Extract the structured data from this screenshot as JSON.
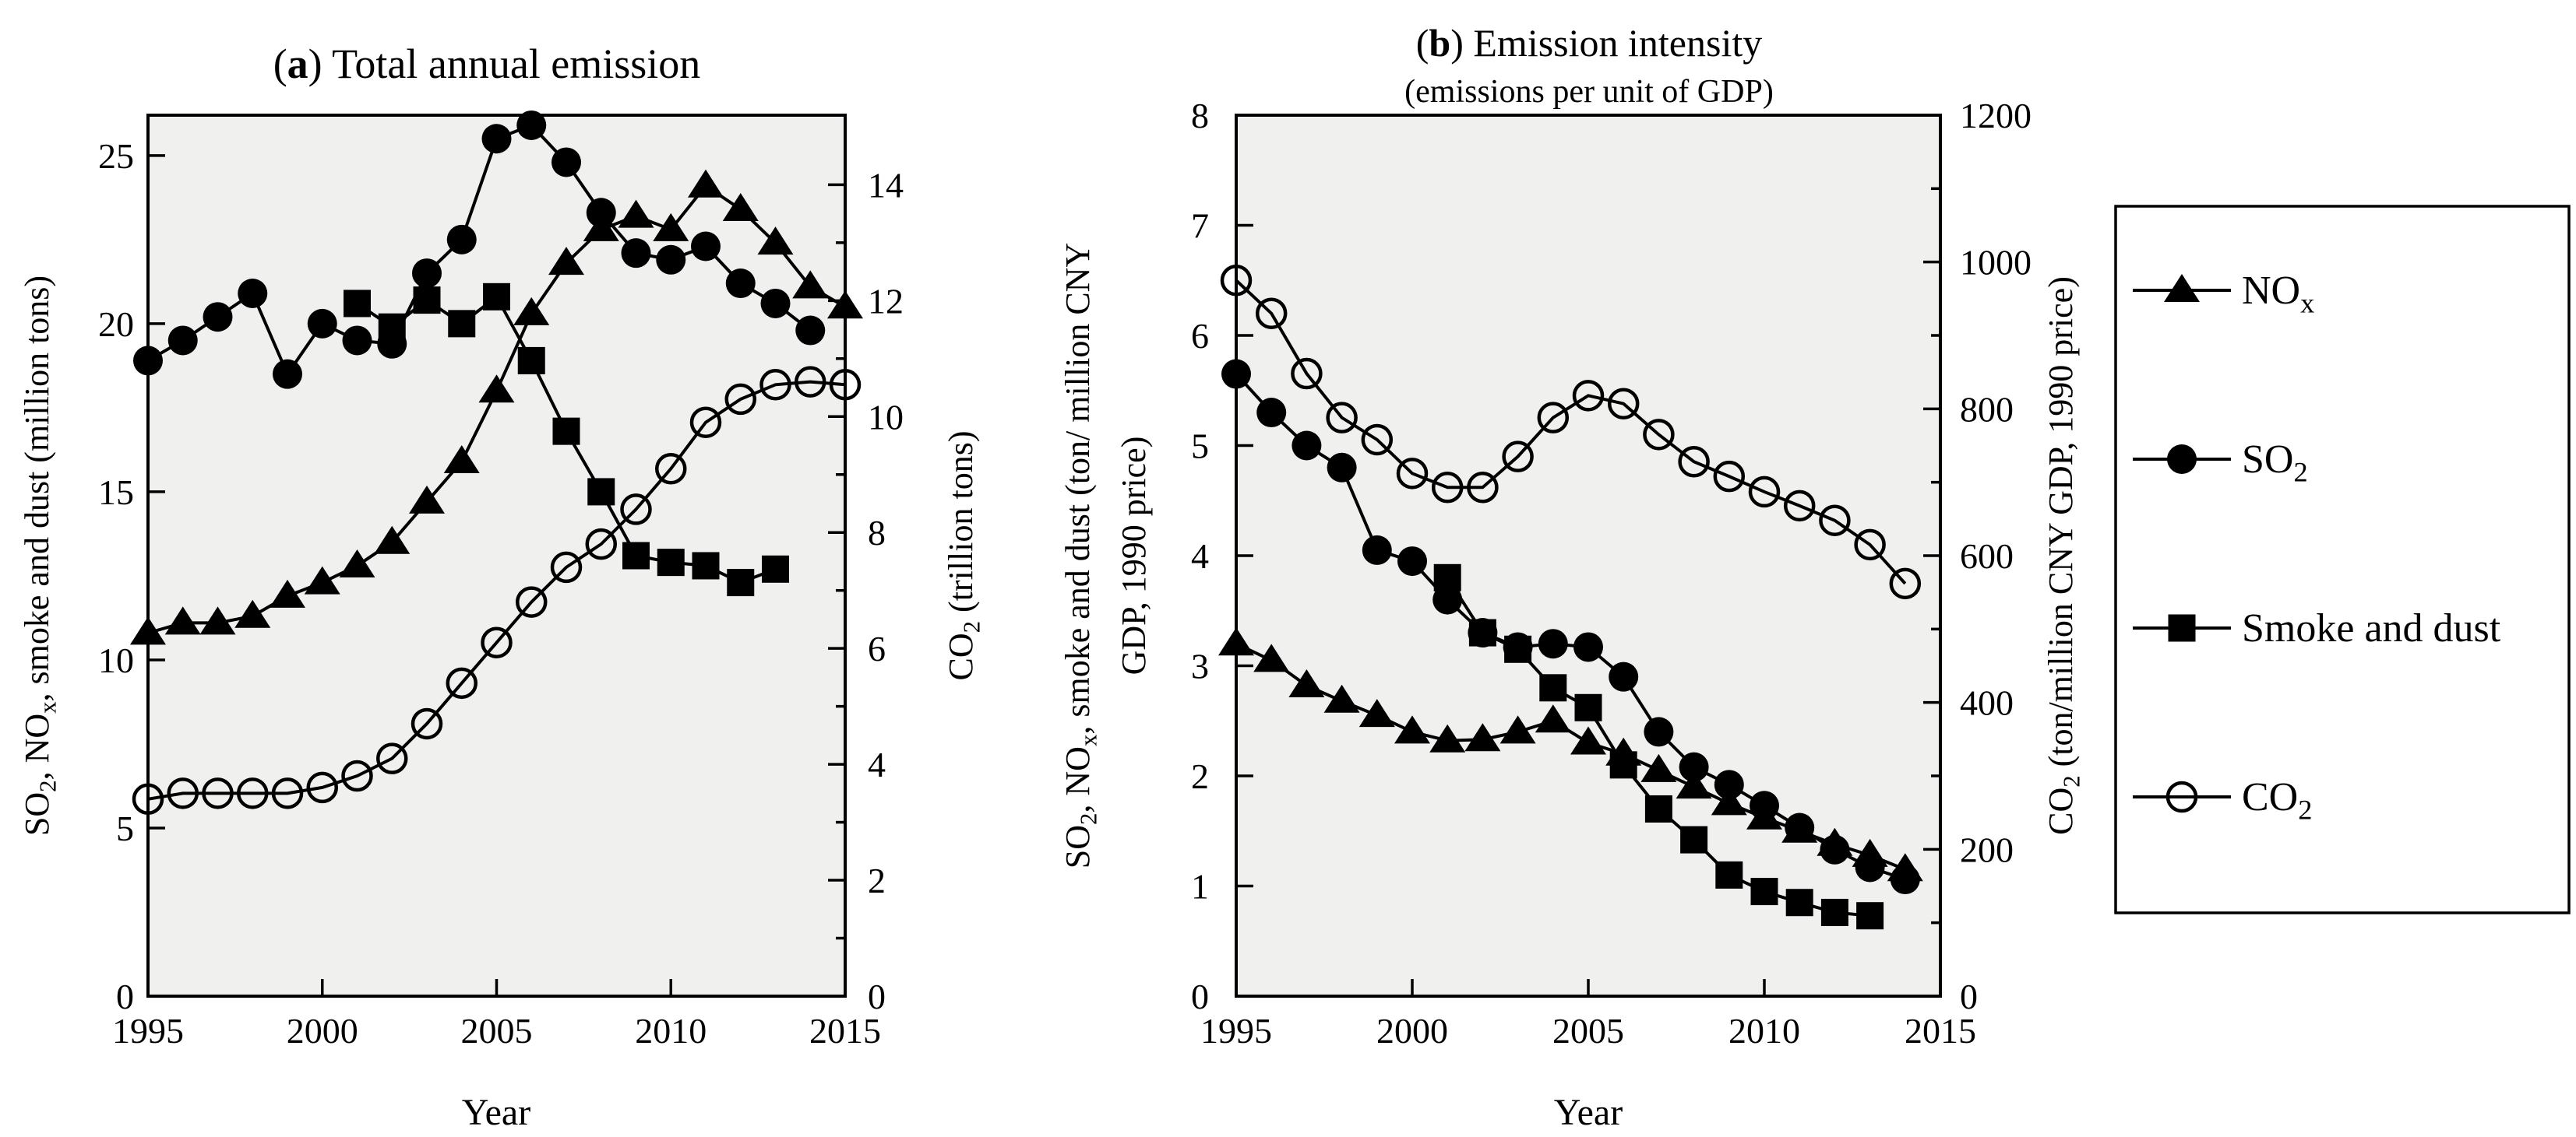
{
  "figure": {
    "background": "#ffffff",
    "ink": "#000000",
    "plot_background": "#f0f0ee"
  },
  "chart_data": [
    {
      "type": "line",
      "panel": "a",
      "title": "(a) Total annual emission",
      "subtitle": "",
      "xlabel": "Year",
      "x_range": [
        1995,
        2015
      ],
      "x_ticks": [
        1995,
        2000,
        2005,
        2010,
        2015
      ],
      "left_axis": {
        "label": "SO₂, NOₓ, smoke and dust  (million tons)",
        "ticks": [
          0,
          5,
          10,
          15,
          20,
          25
        ],
        "max": 26.2
      },
      "right_axis": {
        "label": "CO₂ (trillion tons)",
        "ticks": [
          0,
          2,
          4,
          6,
          8,
          10,
          12,
          14
        ],
        "minor_ticks": [
          1,
          3,
          5,
          7,
          9,
          11,
          13
        ],
        "max": 15.2
      },
      "series": [
        {
          "name": "CO2",
          "marker": "circle-open",
          "axis": "right",
          "x_start": 1995,
          "values": [
            3.4,
            3.5,
            3.5,
            3.5,
            3.5,
            3.6,
            3.8,
            4.1,
            4.7,
            5.4,
            6.1,
            6.8,
            7.4,
            7.8,
            8.4,
            9.1,
            9.9,
            10.3,
            10.55,
            10.6,
            10.55
          ]
        },
        {
          "name": "Smoke and dust",
          "marker": "square-filled",
          "axis": "left",
          "x_start": 2001,
          "values": [
            20.6,
            19.9,
            20.7,
            20.0,
            20.8,
            18.9,
            16.8,
            15.0,
            13.1,
            12.9,
            12.8,
            12.3,
            12.7
          ]
        },
        {
          "name": "SO2",
          "marker": "circle-filled",
          "axis": "left",
          "x_start": 1995,
          "values": [
            18.9,
            19.5,
            20.2,
            20.9,
            18.5,
            20.0,
            19.5,
            19.4,
            21.5,
            22.5,
            25.5,
            25.9,
            24.8,
            23.3,
            22.1,
            21.9,
            22.3,
            21.2,
            20.6,
            19.8
          ]
        },
        {
          "name": "NOx",
          "marker": "triangle-filled",
          "axis": "left",
          "x_start": 1995,
          "values": [
            10.8,
            11.1,
            11.1,
            11.3,
            11.9,
            12.3,
            12.8,
            13.5,
            14.7,
            15.9,
            18.0,
            20.3,
            21.8,
            22.8,
            23.2,
            22.8,
            24.1,
            23.4,
            22.4,
            21.1,
            20.5
          ]
        }
      ]
    },
    {
      "type": "line",
      "panel": "b",
      "title": "(b) Emission intensity",
      "subtitle": "(emissions per unit of GDP)",
      "xlabel": "Year",
      "x_range": [
        1995,
        2015
      ],
      "x_ticks": [
        1995,
        2000,
        2005,
        2010,
        2015
      ],
      "left_axis": {
        "label_line1": "SO₂, NOₓ, smoke and dust (ton/ million CNY",
        "label_line2": "GDP, 1990 price)",
        "ticks": [
          0,
          1,
          2,
          3,
          4,
          5,
          6,
          7,
          8
        ],
        "max": 8
      },
      "right_axis": {
        "label": "CO₂ (ton/million CNY GDP, 1990 price)",
        "ticks": [
          0,
          200,
          400,
          600,
          800,
          1000,
          1200
        ],
        "minor_ticks": [
          100,
          300,
          500,
          700,
          900,
          1100
        ],
        "max": 1200
      },
      "series": [
        {
          "name": "CO2",
          "marker": "circle-open",
          "axis": "right",
          "x_start": 1995,
          "values": [
            975,
            930,
            848,
            788,
            758,
            712,
            693,
            693,
            735,
            788,
            818,
            807,
            765,
            728,
            708,
            687,
            668,
            648,
            615,
            562
          ]
        },
        {
          "name": "SO2",
          "marker": "circle-filled",
          "axis": "left",
          "x_start": 1995,
          "values": [
            5.65,
            5.3,
            5.0,
            4.8,
            4.05,
            3.95,
            3.6,
            3.3,
            3.17,
            3.2,
            3.17,
            2.9,
            2.4,
            2.08,
            1.92,
            1.73,
            1.53,
            1.33,
            1.17,
            1.06
          ]
        },
        {
          "name": "Smoke and dust",
          "marker": "square-filled",
          "axis": "left",
          "x_start": 2001,
          "values": [
            3.8,
            3.3,
            3.15,
            2.8,
            2.62,
            2.1,
            1.7,
            1.42,
            1.1,
            0.95,
            0.85,
            0.76,
            0.73
          ]
        },
        {
          "name": "NOx",
          "marker": "triangle-filled",
          "axis": "left",
          "x_start": 1995,
          "values": [
            3.2,
            3.05,
            2.82,
            2.68,
            2.55,
            2.4,
            2.32,
            2.33,
            2.4,
            2.5,
            2.3,
            2.2,
            2.05,
            1.9,
            1.75,
            1.62,
            1.5,
            1.38,
            1.28,
            1.15
          ]
        }
      ]
    }
  ],
  "legend": {
    "items": [
      {
        "label": "NOₓ",
        "marker": "triangle-filled"
      },
      {
        "label": "SO₂",
        "marker": "circle-filled"
      },
      {
        "label": "Smoke and dust",
        "marker": "square-filled"
      },
      {
        "label": "CO₂",
        "marker": "circle-open"
      }
    ]
  }
}
